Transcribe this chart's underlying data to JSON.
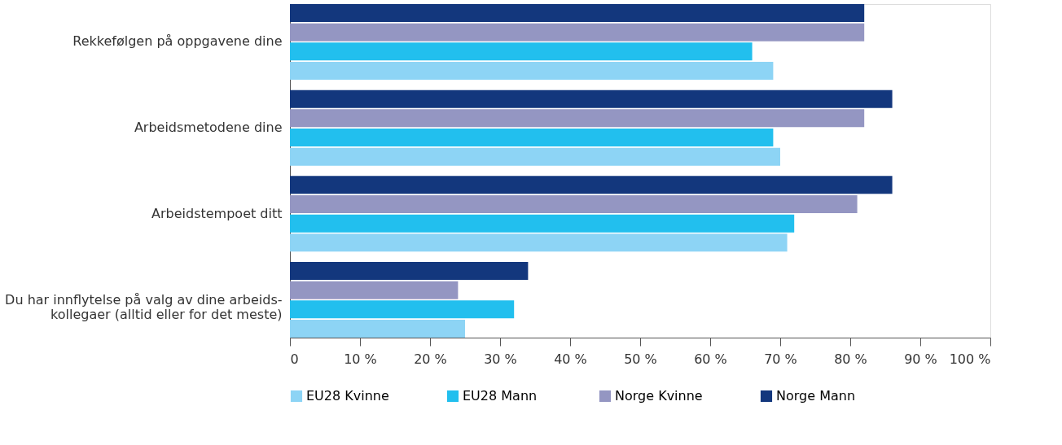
{
  "chart_data": {
    "type": "bar",
    "orientation": "horizontal",
    "categories": [
      "Rekkefølgen på oppgavene dine",
      "Arbeidsmetodene dine",
      "Arbeidstempoet ditt",
      "Du har innflytelse på valg av dine arbeids-\nkollegaer (alltid eller for det meste)"
    ],
    "series": [
      {
        "name": "EU28 Kvinne",
        "color": "#8dd4f5",
        "values": [
          69,
          70,
          71,
          25
        ]
      },
      {
        "name": "EU28  Mann",
        "color": "#22bfee",
        "values": [
          66,
          69,
          72,
          32
        ]
      },
      {
        "name": "Norge Kvinne",
        "color": "#9496c2",
        "values": [
          82,
          82,
          81,
          24
        ]
      },
      {
        "name": "Norge Mann",
        "color": "#13377d",
        "values": [
          82,
          86,
          86,
          34
        ]
      }
    ],
    "xlim": [
      0,
      100
    ],
    "xticks": [
      0,
      {
        "value": 10,
        "label": "10 %"
      },
      {
        "value": 20,
        "label": "20 %"
      },
      {
        "value": 30,
        "label": "30 %"
      },
      {
        "value": 40,
        "label": "40 %"
      },
      {
        "value": 50,
        "label": "50 %"
      },
      {
        "value": 60,
        "label": "60 %"
      },
      {
        "value": 70,
        "label": "70 %"
      },
      {
        "value": 80,
        "label": "80 %"
      },
      {
        "value": 90,
        "label": "90 %"
      },
      {
        "value": 100,
        "label": "100 %"
      }
    ],
    "grid": false,
    "legend": "bottom"
  }
}
